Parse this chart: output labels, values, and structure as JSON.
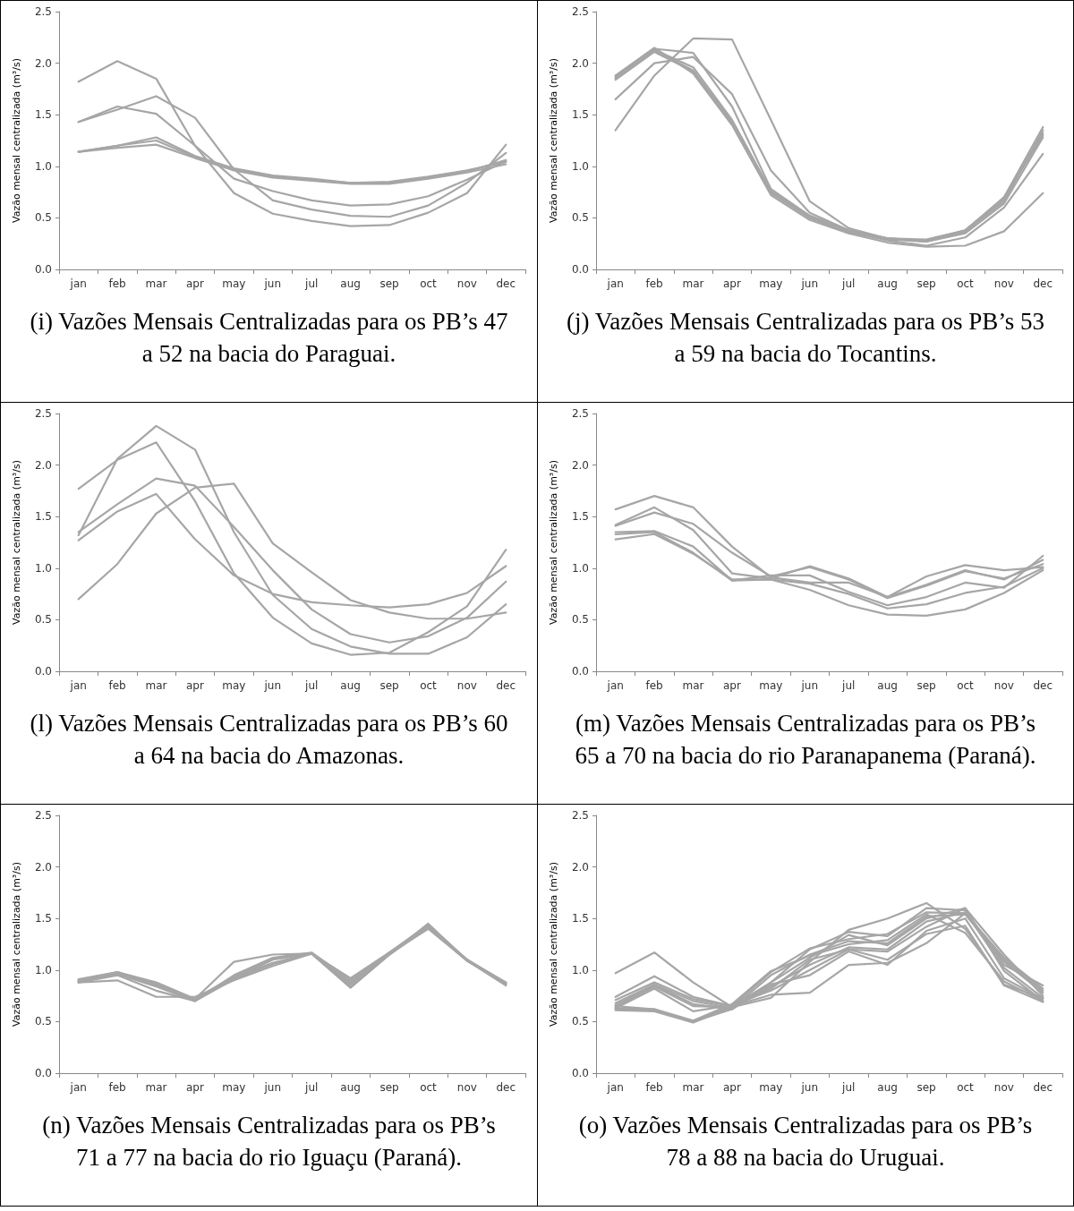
{
  "chart_data": [
    {
      "type": "line",
      "title": "(i) Vazões Mensais Centralizadas para os PB’s 47 a 52 na bacia do Paraguai.",
      "ylabel": "Vazão mensal centralizada (m³/s)",
      "categories": [
        "jan",
        "feb",
        "mar",
        "apr",
        "may",
        "jun",
        "jul",
        "aug",
        "sep",
        "oct",
        "nov",
        "dec"
      ],
      "ylim": [
        0,
        2.5
      ],
      "yticks": [
        {
          "value": 0,
          "label": "0.0"
        },
        {
          "value": 0.5,
          "label": "0.5"
        },
        {
          "value": 1,
          "label": "1.0"
        },
        {
          "value": 1.5,
          "label": "1.5"
        },
        {
          "value": 2,
          "label": "2.0"
        },
        {
          "value": 2.5,
          "label": "2.5"
        }
      ],
      "grid": false,
      "series": [
        {
          "color": "#a6a6a6",
          "values": [
            1.82,
            2.02,
            1.85,
            1.2,
            0.88,
            0.76,
            0.67,
            0.62,
            0.63,
            0.71,
            0.87,
            1.05
          ]
        },
        {
          "color": "#a6a6a6",
          "values": [
            1.43,
            1.58,
            1.51,
            1.2,
            0.74,
            0.54,
            0.47,
            0.42,
            0.43,
            0.55,
            0.74,
            1.21
          ]
        },
        {
          "color": "#a6a6a6",
          "values": [
            1.43,
            1.55,
            1.68,
            1.47,
            0.97,
            0.67,
            0.58,
            0.52,
            0.51,
            0.62,
            0.84,
            1.13
          ]
        },
        {
          "color": "#a6a6a6",
          "values": [
            1.14,
            1.2,
            1.28,
            1.1,
            0.98,
            0.91,
            0.88,
            0.84,
            0.85,
            0.9,
            0.96,
            1.04
          ]
        },
        {
          "color": "#a6a6a6",
          "values": [
            1.14,
            1.18,
            1.21,
            1.08,
            0.96,
            0.89,
            0.86,
            0.83,
            0.83,
            0.88,
            0.94,
            1.02
          ]
        },
        {
          "color": "#a6a6a6",
          "values": [
            1.14,
            1.2,
            1.25,
            1.09,
            0.97,
            0.9,
            0.87,
            0.84,
            0.84,
            0.89,
            0.95,
            1.06
          ]
        }
      ]
    },
    {
      "type": "line",
      "title": "(j) Vazões Mensais Centralizadas para os PB’s 53 a 59 na bacia do Tocantins.",
      "ylabel": "Vazão mensal centralizada (m³/s)",
      "categories": [
        "jan",
        "feb",
        "mar",
        "apr",
        "may",
        "jun",
        "jul",
        "aug",
        "sep",
        "oct",
        "nov",
        "dec"
      ],
      "ylim": [
        0,
        2.5
      ],
      "yticks": [
        {
          "value": 0,
          "label": "0.0"
        },
        {
          "value": 0.5,
          "label": "0.5"
        },
        {
          "value": 1,
          "label": "1.0"
        },
        {
          "value": 1.5,
          "label": "1.5"
        },
        {
          "value": 2,
          "label": "2.0"
        },
        {
          "value": 2.5,
          "label": "2.5"
        }
      ],
      "grid": false,
      "series": [
        {
          "color": "#a6a6a6",
          "values": [
            1.35,
            1.88,
            2.24,
            2.23,
            1.45,
            0.66,
            0.4,
            0.3,
            0.27,
            0.36,
            0.7,
            1.38
          ]
        },
        {
          "color": "#a6a6a6",
          "values": [
            1.65,
            2.0,
            2.06,
            1.7,
            0.96,
            0.55,
            0.38,
            0.3,
            0.28,
            0.38,
            0.68,
            1.32
          ]
        },
        {
          "color": "#a6a6a6",
          "values": [
            1.85,
            2.14,
            2.1,
            1.58,
            0.78,
            0.52,
            0.38,
            0.3,
            0.29,
            0.38,
            0.7,
            1.3
          ]
        },
        {
          "color": "#a6a6a6",
          "values": [
            1.88,
            2.15,
            1.9,
            1.4,
            0.72,
            0.48,
            0.35,
            0.26,
            0.22,
            0.23,
            0.37,
            0.74
          ]
        },
        {
          "color": "#a6a6a6",
          "values": [
            1.86,
            2.12,
            1.93,
            1.43,
            0.75,
            0.5,
            0.37,
            0.28,
            0.23,
            0.31,
            0.6,
            1.12
          ]
        },
        {
          "color": "#a6a6a6",
          "values": [
            1.87,
            2.13,
            1.96,
            1.45,
            0.76,
            0.52,
            0.37,
            0.3,
            0.28,
            0.37,
            0.66,
            1.35
          ]
        },
        {
          "color": "#a6a6a6",
          "values": [
            1.84,
            2.11,
            1.92,
            1.42,
            0.74,
            0.5,
            0.36,
            0.29,
            0.27,
            0.35,
            0.64,
            1.28
          ]
        }
      ]
    },
    {
      "type": "line",
      "title": "(l) Vazões Mensais Centralizadas para os PB’s 60 a 64 na bacia do Amazonas.",
      "ylabel": "Vazão mensal centralizada (m³/s)",
      "categories": [
        "jan",
        "feb",
        "mar",
        "apr",
        "may",
        "jun",
        "jul",
        "aug",
        "sep",
        "oct",
        "nov",
        "dec"
      ],
      "ylim": [
        0,
        2.5
      ],
      "yticks": [
        {
          "value": 0,
          "label": "0.0"
        },
        {
          "value": 0.5,
          "label": "0.5"
        },
        {
          "value": 1,
          "label": "1.0"
        },
        {
          "value": 1.5,
          "label": "1.5"
        },
        {
          "value": 2,
          "label": "2.0"
        },
        {
          "value": 2.5,
          "label": "2.5"
        }
      ],
      "grid": false,
      "series": [
        {
          "color": "#a6a6a6",
          "values": [
            1.77,
            2.05,
            2.22,
            1.65,
            0.95,
            0.52,
            0.27,
            0.16,
            0.18,
            0.38,
            0.63,
            1.18
          ]
        },
        {
          "color": "#a6a6a6",
          "values": [
            1.32,
            2.06,
            2.38,
            2.15,
            1.35,
            0.74,
            0.41,
            0.24,
            0.17,
            0.17,
            0.33,
            0.65
          ]
        },
        {
          "color": "#a6a6a6",
          "values": [
            1.35,
            1.62,
            1.87,
            1.8,
            1.4,
            0.98,
            0.6,
            0.36,
            0.28,
            0.34,
            0.52,
            0.87
          ]
        },
        {
          "color": "#a6a6a6",
          "values": [
            1.27,
            1.55,
            1.72,
            1.28,
            0.93,
            0.75,
            0.67,
            0.64,
            0.62,
            0.65,
            0.76,
            1.02
          ]
        },
        {
          "color": "#a6a6a6",
          "values": [
            0.7,
            1.04,
            1.53,
            1.78,
            1.82,
            1.24,
            0.96,
            0.69,
            0.57,
            0.51,
            0.51,
            0.57
          ]
        }
      ]
    },
    {
      "type": "line",
      "title": "(m) Vazões Mensais Centralizadas para os PB’s 65 a 70 na bacia do rio Paranapanema (Paraná).",
      "ylabel": "Vazão mensal centralizada (m³/s)",
      "categories": [
        "jan",
        "feb",
        "mar",
        "apr",
        "may",
        "jun",
        "jul",
        "aug",
        "sep",
        "oct",
        "nov",
        "dec"
      ],
      "ylim": [
        0,
        2.5
      ],
      "yticks": [
        {
          "value": 0,
          "label": "0.0"
        },
        {
          "value": 0.5,
          "label": "0.5"
        },
        {
          "value": 1,
          "label": "1.0"
        },
        {
          "value": 1.5,
          "label": "1.5"
        },
        {
          "value": 2,
          "label": "2.0"
        },
        {
          "value": 2.5,
          "label": "2.5"
        }
      ],
      "grid": false,
      "series": [
        {
          "color": "#a6a6a6",
          "values": [
            1.57,
            1.7,
            1.59,
            1.21,
            0.91,
            0.86,
            0.86,
            0.72,
            0.92,
            1.03,
            0.98,
            1.01
          ]
        },
        {
          "color": "#a6a6a6",
          "values": [
            1.42,
            1.59,
            1.37,
            0.95,
            0.9,
            1.02,
            0.9,
            0.72,
            0.84,
            0.98,
            0.89,
            1.08
          ]
        },
        {
          "color": "#a6a6a6",
          "values": [
            1.41,
            1.54,
            1.43,
            1.15,
            0.92,
            1.01,
            0.89,
            0.71,
            0.83,
            0.97,
            0.9,
            1.04
          ]
        },
        {
          "color": "#a6a6a6",
          "values": [
            1.35,
            1.36,
            1.21,
            0.88,
            0.93,
            0.93,
            0.77,
            0.64,
            0.72,
            0.86,
            0.81,
            1.12
          ]
        },
        {
          "color": "#a6a6a6",
          "values": [
            1.33,
            1.35,
            1.15,
            0.88,
            0.89,
            0.85,
            0.75,
            0.61,
            0.65,
            0.76,
            0.82,
            1.0
          ]
        },
        {
          "color": "#a6a6a6",
          "values": [
            1.28,
            1.33,
            1.14,
            0.89,
            0.89,
            0.79,
            0.64,
            0.55,
            0.54,
            0.6,
            0.76,
            0.98
          ]
        }
      ]
    },
    {
      "type": "line",
      "title": "(n) Vazões Mensais Centralizadas para os PB’s 71 a 77 na bacia do rio Iguaçu (Paraná).",
      "ylabel": "Vazão mensal centralizada (m³/s)",
      "categories": [
        "jan",
        "feb",
        "mar",
        "apr",
        "may",
        "jun",
        "jul",
        "aug",
        "sep",
        "oct",
        "nov",
        "dec"
      ],
      "ylim": [
        0,
        2.5
      ],
      "yticks": [
        {
          "value": 0,
          "label": "0.0"
        },
        {
          "value": 0.5,
          "label": "0.5"
        },
        {
          "value": 1,
          "label": "1.0"
        },
        {
          "value": 1.5,
          "label": "1.5"
        },
        {
          "value": 2,
          "label": "2.0"
        },
        {
          "value": 2.5,
          "label": "2.5"
        }
      ],
      "grid": false,
      "series": [
        {
          "color": "#a6a6a6",
          "values": [
            0.9,
            0.98,
            0.88,
            0.72,
            1.08,
            1.15,
            1.16,
            0.92,
            1.17,
            1.42,
            1.1,
            0.88
          ]
        },
        {
          "color": "#a6a6a6",
          "values": [
            0.88,
            0.9,
            0.74,
            0.74,
            0.9,
            1.04,
            1.16,
            0.83,
            1.15,
            1.45,
            1.09,
            0.86
          ]
        },
        {
          "color": "#a6a6a6",
          "values": [
            0.89,
            0.96,
            0.84,
            0.7,
            0.93,
            1.07,
            1.16,
            0.83,
            1.15,
            1.43,
            1.1,
            0.87
          ]
        },
        {
          "color": "#a6a6a6",
          "values": [
            0.9,
            0.97,
            0.86,
            0.71,
            0.92,
            1.1,
            1.16,
            0.88,
            1.16,
            1.4,
            1.09,
            0.88
          ]
        },
        {
          "color": "#a6a6a6",
          "values": [
            0.88,
            0.95,
            0.8,
            0.7,
            0.95,
            1.12,
            1.17,
            0.9,
            1.17,
            1.44,
            1.1,
            0.86
          ]
        },
        {
          "color": "#a6a6a6",
          "values": [
            0.89,
            0.97,
            0.87,
            0.7,
            0.91,
            1.06,
            1.16,
            0.84,
            1.15,
            1.41,
            1.09,
            0.85
          ]
        },
        {
          "color": "#a6a6a6",
          "values": [
            0.91,
            0.98,
            0.85,
            0.72,
            0.94,
            1.11,
            1.16,
            0.86,
            1.16,
            1.42,
            1.1,
            0.87
          ]
        }
      ]
    },
    {
      "type": "line",
      "title": "(o) Vazões Mensais Centralizadas para os PB’s 78 a 88 na bacia do Uruguai.",
      "ylabel": "Vazão mensal centralizada (m³/s)",
      "categories": [
        "jan",
        "feb",
        "mar",
        "apr",
        "may",
        "jun",
        "jul",
        "aug",
        "sep",
        "oct",
        "nov",
        "dec"
      ],
      "ylim": [
        0,
        2.5
      ],
      "yticks": [
        {
          "value": 0,
          "label": "0.0"
        },
        {
          "value": 0.5,
          "label": "0.5"
        },
        {
          "value": 1,
          "label": "1.0"
        },
        {
          "value": 1.5,
          "label": "1.5"
        },
        {
          "value": 2,
          "label": "2.0"
        },
        {
          "value": 2.5,
          "label": "2.5"
        }
      ],
      "grid": false,
      "series": [
        {
          "color": "#a6a6a6",
          "values": [
            0.97,
            1.17,
            0.88,
            0.64,
            0.73,
            1.08,
            1.39,
            1.5,
            1.65,
            1.4,
            0.86,
            0.73
          ]
        },
        {
          "color": "#a6a6a6",
          "values": [
            0.74,
            0.94,
            0.74,
            0.65,
            0.88,
            1.2,
            1.37,
            1.33,
            1.6,
            1.58,
            1.05,
            0.85
          ]
        },
        {
          "color": "#a6a6a6",
          "values": [
            0.71,
            0.88,
            0.72,
            0.65,
            0.98,
            1.21,
            1.3,
            1.35,
            1.56,
            1.55,
            1.1,
            0.8
          ]
        },
        {
          "color": "#a6a6a6",
          "values": [
            0.68,
            0.86,
            0.7,
            0.63,
            0.95,
            1.15,
            1.28,
            1.26,
            1.52,
            1.54,
            1.08,
            0.78
          ]
        },
        {
          "color": "#a6a6a6",
          "values": [
            0.66,
            0.85,
            0.67,
            0.62,
            0.88,
            1.12,
            1.34,
            1.24,
            1.5,
            1.6,
            1.15,
            0.75
          ]
        },
        {
          "color": "#a6a6a6",
          "values": [
            0.64,
            0.84,
            0.65,
            0.64,
            0.84,
            1.05,
            1.22,
            1.2,
            1.47,
            1.56,
            1.02,
            0.73
          ]
        },
        {
          "color": "#a6a6a6",
          "values": [
            0.63,
            0.82,
            0.6,
            0.66,
            0.8,
            1.0,
            1.2,
            1.18,
            1.42,
            1.6,
            0.99,
            0.7
          ]
        },
        {
          "color": "#a6a6a6",
          "values": [
            0.62,
            0.61,
            0.5,
            0.65,
            0.76,
            0.78,
            1.05,
            1.07,
            1.26,
            1.55,
            1.12,
            0.82
          ]
        },
        {
          "color": "#a6a6a6",
          "values": [
            0.63,
            0.62,
            0.5,
            0.62,
            0.86,
            0.95,
            1.18,
            1.05,
            1.38,
            1.5,
            0.92,
            0.72
          ]
        },
        {
          "color": "#a6a6a6",
          "values": [
            0.61,
            0.6,
            0.49,
            0.64,
            0.82,
            1.1,
            1.2,
            1.1,
            1.35,
            1.43,
            0.85,
            0.69
          ]
        },
        {
          "color": "#a6a6a6",
          "values": [
            0.65,
            0.62,
            0.51,
            0.67,
            0.99,
            1.14,
            1.25,
            1.29,
            1.54,
            1.36,
            0.89,
            0.7
          ]
        }
      ]
    }
  ]
}
